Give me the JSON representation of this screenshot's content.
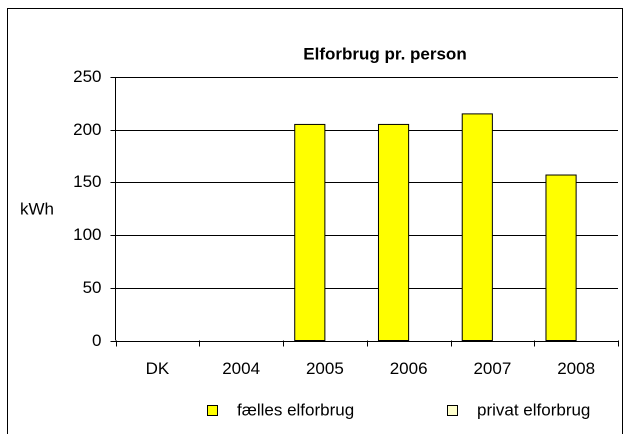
{
  "chart_data": {
    "type": "bar",
    "title": "Elforbrug pr. person",
    "y_label": "kWh",
    "categories": [
      "DK",
      "2004",
      "2005",
      "2006",
      "2007",
      "2008"
    ],
    "series": [
      {
        "name": "fælles elforbrug",
        "color": "#ffff00",
        "values": [
          null,
          null,
          205,
          205,
          215,
          157
        ]
      },
      {
        "name": "privat elforbrug",
        "color": "#ffffcc",
        "values": [
          null,
          null,
          null,
          null,
          null,
          null
        ]
      }
    ],
    "ylim": [
      0,
      250
    ],
    "yticks": [
      0,
      50,
      100,
      150,
      200,
      250
    ],
    "grid": true,
    "legend": "bottom"
  }
}
